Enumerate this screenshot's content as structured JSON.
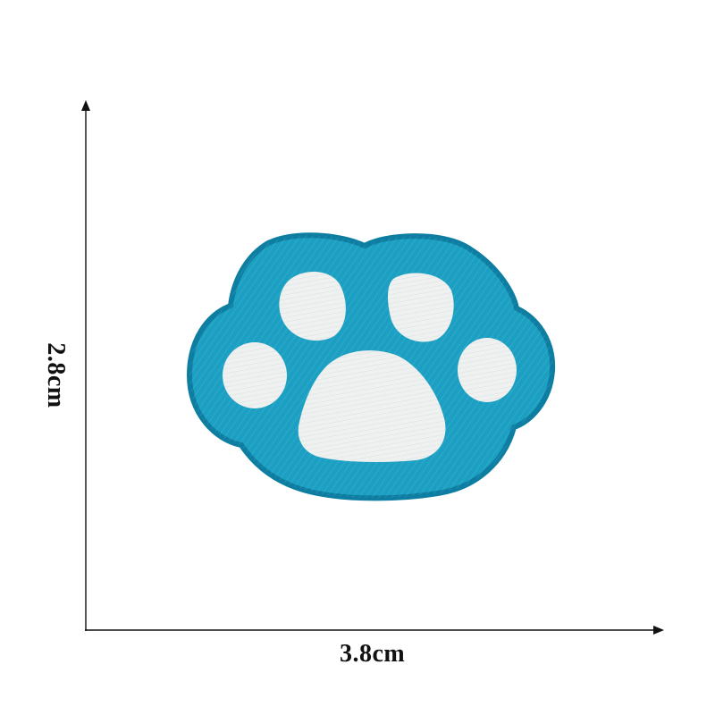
{
  "dimensions": {
    "width_label": "3.8cm",
    "height_label": "2.8cm"
  },
  "colors": {
    "background": "#ffffff",
    "axis": "#111111",
    "patch_blue": "#1b9fc2",
    "patch_blue_dark": "#0f86ab",
    "patch_edge": "#0d7ea1",
    "pad_white": "#eef1f0"
  },
  "icons": {
    "patch": "paw-print-icon"
  }
}
